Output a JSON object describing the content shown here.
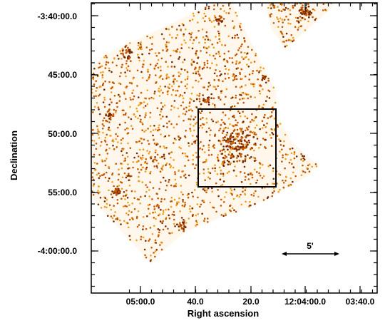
{
  "image": {
    "x_axis_label": "Right ascension",
    "y_axis_label": "Declination",
    "x_tick_labels": [
      "05:00.0",
      "40.0",
      "20.0",
      "12:04:00.0",
      "03:40.0"
    ],
    "y_tick_labels": [
      "-3:40:00.0",
      "45:00.0",
      "50:00.0",
      "55:00.0",
      "-4:00:00.0"
    ],
    "scale_bar_label": "5'",
    "colors": {
      "background": "#ffffff",
      "source_dark": "#7a2a00",
      "source_mid": "#c85a00",
      "source_light": "#f0a020",
      "axes": "#000000"
    }
  }
}
